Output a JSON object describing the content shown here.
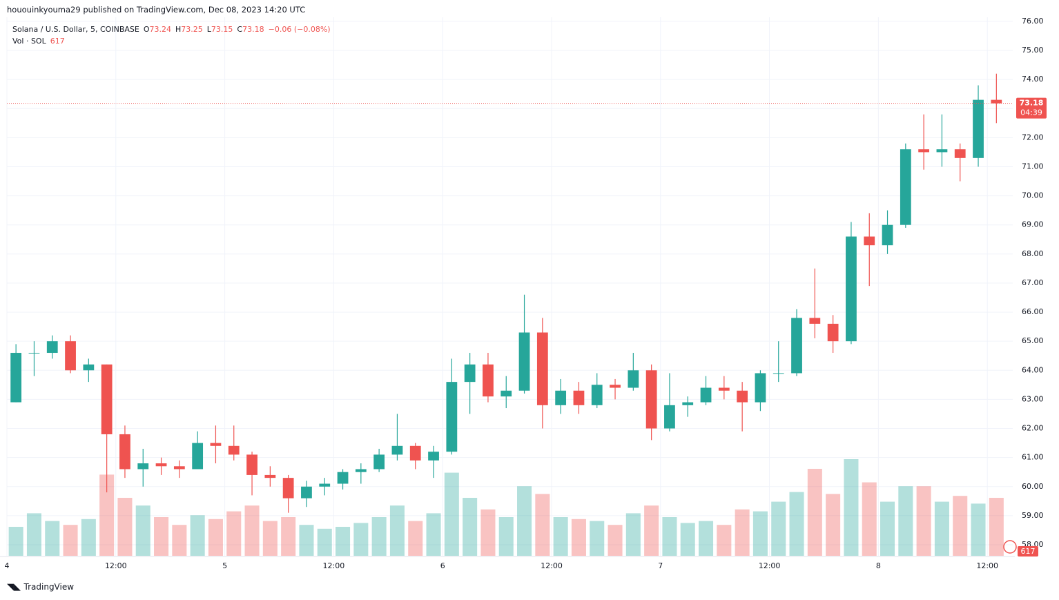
{
  "page": {
    "publisher": "hououinkyouma29 published on TradingView.com, Dec 08, 2023 14:20 UTC",
    "brand": "TradingView"
  },
  "chart_data": {
    "type": "candlestick",
    "title": "Solana / U.S. Dollar, 5, COINBASE",
    "ohlc_legend": [
      {
        "prefix": "O",
        "value": 73.24
      },
      {
        "prefix": "H",
        "value": 73.25
      },
      {
        "prefix": "L",
        "value": 73.15
      },
      {
        "prefix": "C",
        "value": 73.18
      }
    ],
    "change": "−0.06 (−0.08%)",
    "volume_title": "Vol · SOL",
    "last_volume": 617,
    "last_price": 73.18,
    "countdown": "04:39",
    "up_color": "#26a69a",
    "down_color": "#ef5350",
    "x": [
      1,
      3,
      5,
      7,
      9,
      11,
      13,
      15,
      17,
      19,
      21,
      23,
      25,
      27,
      29,
      31,
      33,
      35,
      37,
      39,
      41,
      43,
      45,
      47,
      49,
      51,
      53,
      55,
      57,
      59,
      61,
      63,
      65,
      67,
      69,
      71,
      73,
      75,
      77,
      79,
      81,
      83,
      85,
      87,
      89,
      91,
      93,
      95,
      97,
      99,
      101,
      103,
      105,
      107,
      109
    ],
    "open": [
      62.9,
      64.6,
      64.6,
      65.0,
      64.0,
      64.2,
      61.8,
      60.6,
      60.8,
      60.7,
      60.6,
      61.5,
      61.4,
      61.1,
      60.4,
      60.3,
      59.6,
      60.0,
      60.1,
      60.5,
      60.6,
      61.1,
      61.4,
      60.9,
      61.2,
      63.6,
      64.2,
      63.1,
      63.3,
      65.3,
      62.8,
      63.3,
      62.8,
      63.5,
      63.4,
      64.0,
      62.0,
      62.8,
      62.9,
      63.4,
      63.3,
      62.9,
      63.9,
      63.9,
      65.8,
      65.6,
      65.0,
      68.6,
      68.3,
      69.0,
      71.6,
      71.5,
      71.6,
      71.3,
      73.3
    ],
    "high": [
      64.9,
      65.0,
      65.2,
      65.2,
      64.4,
      64.2,
      62.1,
      61.3,
      61.0,
      60.9,
      61.9,
      62.1,
      62.1,
      61.2,
      60.7,
      60.4,
      60.2,
      60.3,
      60.6,
      60.8,
      61.3,
      62.5,
      61.5,
      61.4,
      64.4,
      64.6,
      64.6,
      63.8,
      66.6,
      65.8,
      63.7,
      63.6,
      63.9,
      63.7,
      64.6,
      64.2,
      63.9,
      63.1,
      63.8,
      63.8,
      63.6,
      64.0,
      65.0,
      66.1,
      67.5,
      65.9,
      69.1,
      69.4,
      69.5,
      71.8,
      72.8,
      72.8,
      71.8,
      73.8,
      74.2
    ],
    "low": [
      62.9,
      63.8,
      64.4,
      63.9,
      63.6,
      59.8,
      60.3,
      60.0,
      60.4,
      60.3,
      60.6,
      60.8,
      60.9,
      59.7,
      60.0,
      59.1,
      59.3,
      59.7,
      59.9,
      60.1,
      60.5,
      60.9,
      60.6,
      60.3,
      61.1,
      62.5,
      62.9,
      62.7,
      63.2,
      62.0,
      62.5,
      62.5,
      62.7,
      63.0,
      63.3,
      61.6,
      61.9,
      62.4,
      62.8,
      63.0,
      61.9,
      62.6,
      63.6,
      63.8,
      65.1,
      64.6,
      64.9,
      66.9,
      68.0,
      68.9,
      70.9,
      71.0,
      70.5,
      71.0,
      72.5
    ],
    "close": [
      64.6,
      64.6,
      65.0,
      64.0,
      64.2,
      61.8,
      60.6,
      60.8,
      60.7,
      60.6,
      61.5,
      61.4,
      61.1,
      60.4,
      60.3,
      59.6,
      60.0,
      60.1,
      60.5,
      60.6,
      61.1,
      61.4,
      60.9,
      61.2,
      63.6,
      64.2,
      63.1,
      63.3,
      65.3,
      62.8,
      63.3,
      62.8,
      63.5,
      63.4,
      64.0,
      62.0,
      62.8,
      62.9,
      63.4,
      63.3,
      62.9,
      63.9,
      63.9,
      65.8,
      65.6,
      65.0,
      68.6,
      68.3,
      69.0,
      71.6,
      71.5,
      71.6,
      71.3,
      73.3,
      73.18
    ],
    "volume": [
      1500,
      2200,
      1800,
      1600,
      1900,
      4200,
      3000,
      2600,
      2000,
      1600,
      2100,
      1900,
      2300,
      2600,
      1800,
      2000,
      1600,
      1400,
      1500,
      1700,
      2000,
      2600,
      1800,
      2200,
      4300,
      3000,
      2400,
      2000,
      3600,
      3200,
      2000,
      1900,
      1800,
      1600,
      2200,
      2600,
      2000,
      1700,
      1800,
      1600,
      2400,
      2300,
      2800,
      3300,
      4500,
      3200,
      5000,
      3800,
      2800,
      3600,
      3600,
      2800,
      3100,
      2700,
      3000
    ],
    "xlim": [
      0,
      110.8
    ],
    "xticks": [
      {
        "value": 0,
        "label": "4"
      },
      {
        "value": 12,
        "label": "12:00"
      },
      {
        "value": 24,
        "label": "5"
      },
      {
        "value": 36,
        "label": "12:00"
      },
      {
        "value": 48,
        "label": "6"
      },
      {
        "value": 60,
        "label": "12:00"
      },
      {
        "value": 72,
        "label": "7"
      },
      {
        "value": 84,
        "label": "12:00"
      },
      {
        "value": 96,
        "label": "8"
      },
      {
        "value": 108,
        "label": "12:00"
      }
    ],
    "ylim": [
      57.62,
      76.14
    ],
    "yticks": [
      {
        "value": 58,
        "label": "58.00"
      },
      {
        "value": 59,
        "label": "59.00"
      },
      {
        "value": 60,
        "label": "60.00"
      },
      {
        "value": 61,
        "label": "61.00"
      },
      {
        "value": 62,
        "label": "62.00"
      },
      {
        "value": 63,
        "label": "63.00"
      },
      {
        "value": 64,
        "label": "64.00"
      },
      {
        "value": 65,
        "label": "65.00"
      },
      {
        "value": 66,
        "label": "66.00"
      },
      {
        "value": 67,
        "label": "67.00"
      },
      {
        "value": 68,
        "label": "68.00"
      },
      {
        "value": 69,
        "label": "69.00"
      },
      {
        "value": 70,
        "label": "70.00"
      },
      {
        "value": 71,
        "label": "71.00"
      },
      {
        "value": 72,
        "label": "72.00"
      },
      {
        "value": 73,
        "label": "73.00"
      },
      {
        "value": 74,
        "label": "74.00"
      },
      {
        "value": 75,
        "label": "75.00"
      },
      {
        "value": 76,
        "label": "76.00"
      }
    ],
    "grid": true
  }
}
